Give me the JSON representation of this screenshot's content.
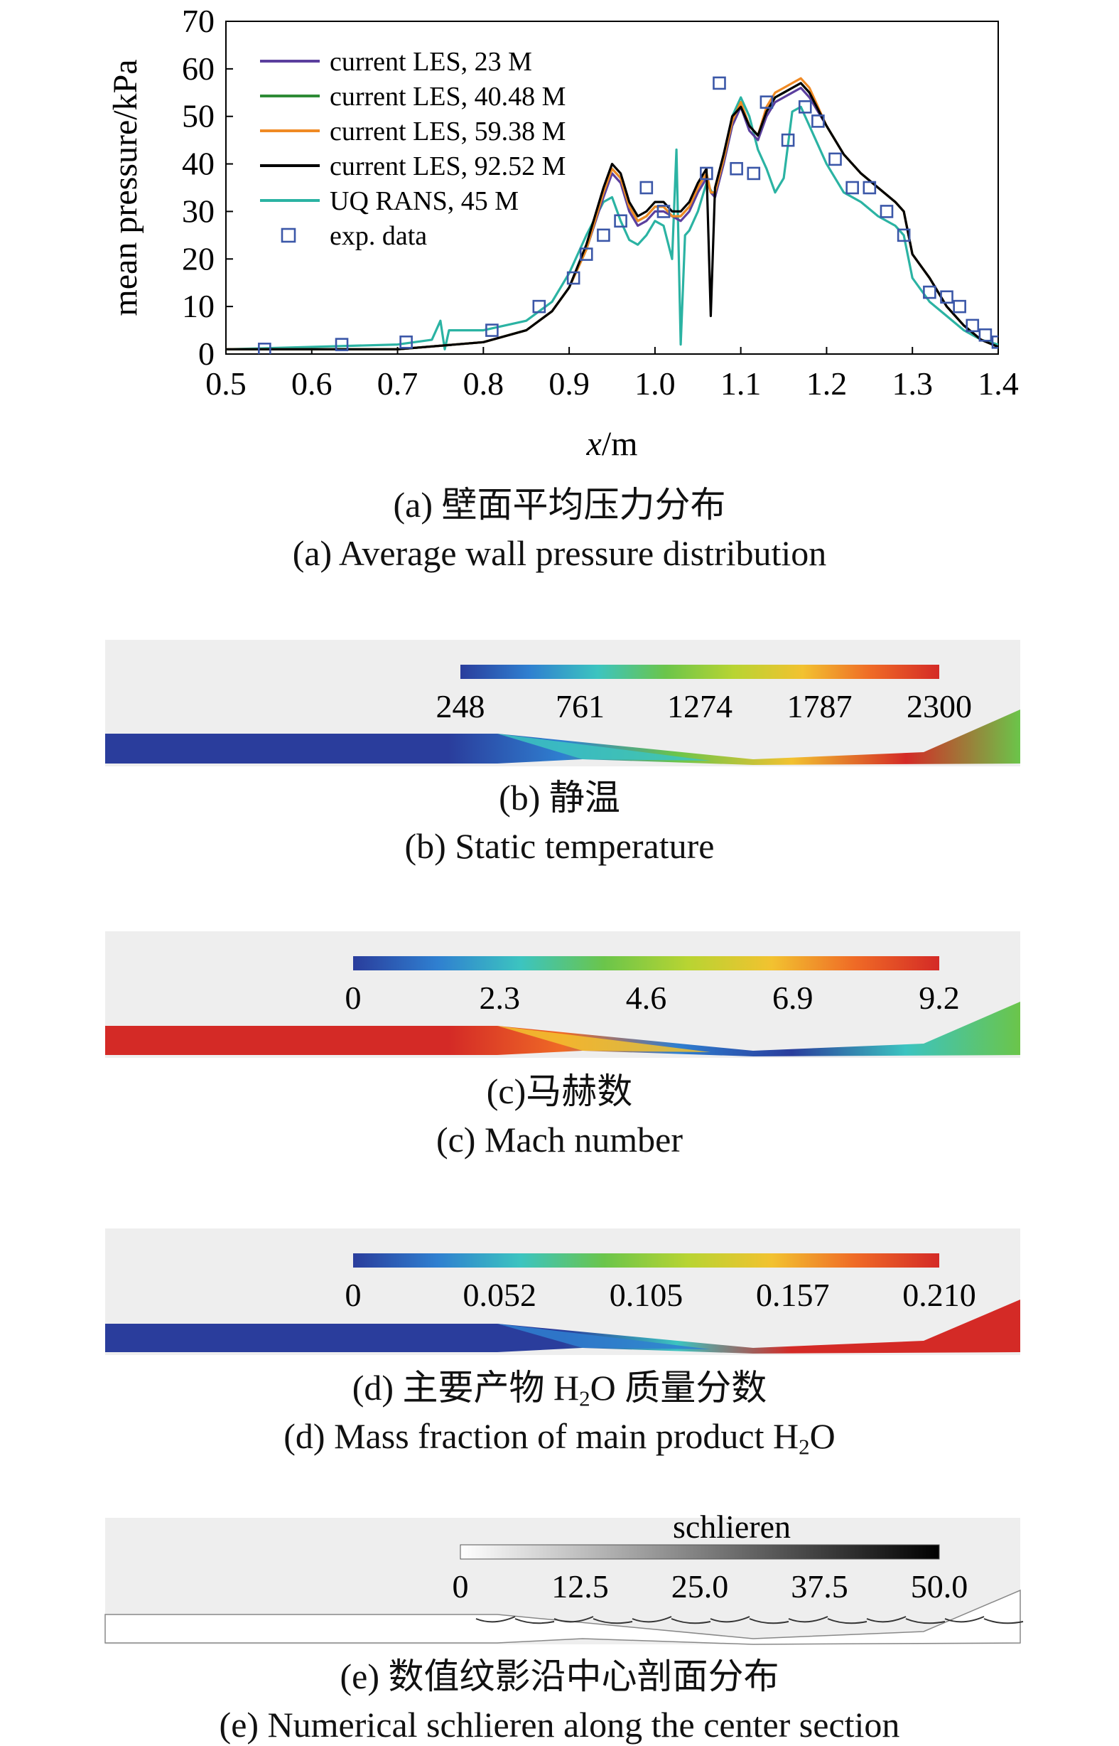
{
  "chart_data": [
    {
      "type": "line",
      "xlabel": "x/m",
      "ylabel": "mean pressure/kPa",
      "xlim": [
        0.5,
        1.4
      ],
      "ylim": [
        0,
        70
      ],
      "xticks": [
        "0.5",
        "0.6",
        "0.7",
        "0.8",
        "0.9",
        "1.0",
        "1.1",
        "1.2",
        "1.3",
        "1.4"
      ],
      "yticks": [
        "0",
        "10",
        "20",
        "30",
        "40",
        "50",
        "60",
        "70"
      ],
      "grid": false,
      "legend": "top-left",
      "series": [
        {
          "name": "current LES, 23 M",
          "color": "#5b3f9e",
          "x": [
            0.5,
            0.7,
            0.8,
            0.85,
            0.88,
            0.9,
            0.92,
            0.94,
            0.95,
            0.96,
            0.97,
            0.98,
            0.99,
            1.0,
            1.01,
            1.02,
            1.03,
            1.04,
            1.05,
            1.06,
            1.065,
            1.07,
            1.08,
            1.09,
            1.1,
            1.11,
            1.12,
            1.13,
            1.14,
            1.15,
            1.16,
            1.17,
            1.18,
            1.2,
            1.22,
            1.24,
            1.26,
            1.28,
            1.29,
            1.3,
            1.32,
            1.34,
            1.36,
            1.38,
            1.4
          ],
          "y": [
            1,
            1,
            2.5,
            5,
            9,
            14,
            22,
            33,
            38,
            36,
            30,
            27,
            28,
            30,
            30,
            29,
            28,
            30,
            34,
            37,
            34,
            33,
            40,
            48,
            52,
            47,
            45,
            50,
            53,
            54,
            55,
            56,
            54,
            48,
            42,
            38,
            35,
            32,
            30,
            21,
            16,
            10,
            6,
            3,
            1.5
          ]
        },
        {
          "name": "current LES, 40.48 M",
          "color": "#2e8b36",
          "x": [
            0.5,
            0.7,
            0.8,
            0.85,
            0.88,
            0.9,
            0.92,
            0.94,
            0.95,
            0.96,
            0.97,
            0.98,
            0.99,
            1.0,
            1.01,
            1.02,
            1.03,
            1.04,
            1.05,
            1.06,
            1.065,
            1.07,
            1.08,
            1.09,
            1.1,
            1.11,
            1.12,
            1.13,
            1.14,
            1.15,
            1.16,
            1.17,
            1.18,
            1.2,
            1.22,
            1.24,
            1.26,
            1.28,
            1.29,
            1.3,
            1.32,
            1.34,
            1.36,
            1.38,
            1.4
          ],
          "y": [
            1,
            1,
            2.5,
            5,
            9,
            14,
            22,
            34,
            39,
            37,
            31,
            28,
            29,
            31,
            31,
            29,
            29,
            31,
            35,
            38,
            34,
            34,
            41,
            49,
            53,
            48,
            46,
            51,
            54,
            55,
            56,
            57,
            55,
            48,
            42,
            38,
            35,
            32,
            30,
            21,
            16,
            10,
            6,
            3,
            1.5
          ]
        },
        {
          "name": "current LES, 59.38 M",
          "color": "#f08a24",
          "x": [
            0.5,
            0.7,
            0.8,
            0.85,
            0.88,
            0.9,
            0.92,
            0.94,
            0.95,
            0.96,
            0.97,
            0.98,
            0.99,
            1.0,
            1.01,
            1.02,
            1.03,
            1.04,
            1.05,
            1.06,
            1.065,
            1.07,
            1.08,
            1.09,
            1.1,
            1.11,
            1.12,
            1.13,
            1.14,
            1.15,
            1.16,
            1.17,
            1.18,
            1.2,
            1.22,
            1.24,
            1.26,
            1.28,
            1.29,
            1.3,
            1.32,
            1.34,
            1.36,
            1.38,
            1.4
          ],
          "y": [
            1,
            1,
            2.5,
            5,
            9,
            14,
            22,
            34,
            39,
            37,
            31,
            28,
            29,
            31,
            31,
            29,
            29,
            31,
            35,
            38,
            34,
            34,
            41,
            49,
            53,
            48,
            46,
            52,
            55,
            56,
            57,
            58,
            56,
            48,
            42,
            38,
            35,
            32,
            30,
            21,
            16,
            10,
            6,
            3,
            1.5
          ]
        },
        {
          "name": "current LES, 92.52 M",
          "color": "#000000",
          "x": [
            0.5,
            0.7,
            0.8,
            0.85,
            0.88,
            0.9,
            0.92,
            0.94,
            0.95,
            0.96,
            0.97,
            0.98,
            0.99,
            1.0,
            1.01,
            1.02,
            1.03,
            1.04,
            1.05,
            1.06,
            1.065,
            1.07,
            1.08,
            1.09,
            1.1,
            1.11,
            1.12,
            1.13,
            1.14,
            1.15,
            1.16,
            1.17,
            1.18,
            1.2,
            1.22,
            1.24,
            1.26,
            1.28,
            1.29,
            1.3,
            1.32,
            1.34,
            1.36,
            1.38,
            1.4
          ],
          "y": [
            1,
            1,
            2.5,
            5,
            9,
            14,
            23,
            35,
            40,
            38,
            32,
            29,
            30,
            32,
            32,
            30,
            30,
            32,
            36,
            39,
            8,
            35,
            42,
            50,
            52,
            48,
            46,
            51,
            54,
            55,
            56,
            57,
            55,
            48,
            42,
            38,
            35,
            32,
            30,
            21,
            16,
            10,
            6,
            3,
            1.5
          ]
        },
        {
          "name": "UQ RANS, 45 M",
          "color": "#2bb3a3",
          "x": [
            0.5,
            0.6,
            0.7,
            0.74,
            0.75,
            0.755,
            0.76,
            0.8,
            0.85,
            0.88,
            0.9,
            0.92,
            0.94,
            0.95,
            0.96,
            0.97,
            0.98,
            0.99,
            1.0,
            1.01,
            1.02,
            1.025,
            1.03,
            1.035,
            1.04,
            1.05,
            1.06,
            1.07,
            1.08,
            1.09,
            1.1,
            1.11,
            1.12,
            1.13,
            1.14,
            1.15,
            1.16,
            1.17,
            1.18,
            1.2,
            1.22,
            1.24,
            1.26,
            1.28,
            1.29,
            1.3,
            1.32,
            1.34,
            1.36,
            1.38,
            1.4
          ],
          "y": [
            1,
            1.5,
            2,
            3,
            7,
            1,
            5,
            5,
            7,
            11,
            17,
            25,
            32,
            33,
            28,
            24,
            23,
            25,
            28,
            27,
            20,
            43,
            2,
            25,
            26,
            30,
            36,
            33,
            41,
            50,
            54,
            50,
            43,
            39,
            34,
            37,
            51,
            52,
            48,
            40,
            34,
            32,
            29,
            27,
            25,
            16,
            11,
            8,
            5,
            3,
            2
          ]
        },
        {
          "name": "exp. data",
          "color": "#3b57a8",
          "style": "markers",
          "x": [
            0.545,
            0.635,
            0.71,
            0.81,
            0.865,
            0.905,
            0.92,
            0.94,
            0.96,
            0.99,
            1.01,
            1.06,
            1.075,
            1.095,
            1.115,
            1.13,
            1.155,
            1.175,
            1.19,
            1.21,
            1.23,
            1.25,
            1.27,
            1.29,
            1.32,
            1.34,
            1.355,
            1.37,
            1.385,
            1.4
          ],
          "y": [
            1,
            2,
            2.5,
            5,
            10,
            16,
            21,
            25,
            28,
            35,
            30,
            38,
            57,
            39,
            38,
            53,
            45,
            52,
            49,
            41,
            35,
            35,
            30,
            25,
            13,
            12,
            10,
            6,
            4,
            2.5
          ]
        }
      ]
    },
    {
      "type": "heatmap",
      "colorbar_ticks": [
        "248",
        "761",
        "1274",
        "1787",
        "2300"
      ],
      "colormap": "jet"
    },
    {
      "type": "heatmap",
      "colorbar_ticks": [
        "0",
        "2.3",
        "4.6",
        "6.9",
        "9.2"
      ],
      "colormap": "jet"
    },
    {
      "type": "heatmap",
      "colorbar_ticks": [
        "0",
        "0.052",
        "0.105",
        "0.157",
        "0.210"
      ],
      "colormap": "jet"
    },
    {
      "type": "heatmap",
      "title": "schlieren",
      "colorbar_ticks": [
        "0",
        "12.5",
        "25.0",
        "37.5",
        "50.0"
      ],
      "colormap": "greys"
    }
  ],
  "captions": {
    "a_cn": "(a) 壁面平均压力分布",
    "a_en": "(a) Average wall pressure distribution",
    "b_cn": "(b) 静温",
    "b_en": "(b) Static temperature",
    "c_cn": "(c)马赫数",
    "c_en": "(c) Mach number",
    "d_cn_pre": "(d) 主要产物 H",
    "d_cn_sub": "2",
    "d_cn_post": "O 质量分数",
    "d_en_pre": "(d) Mass fraction of main product H",
    "d_en_sub": "2",
    "d_en_post": "O",
    "e_cn": "(e) 数值纹影沿中心剖面分布",
    "e_en": "(e) Numerical schlieren along the center section"
  },
  "colors": {
    "jet": [
      "#2a3d9c",
      "#2f7fd0",
      "#3cc4c0",
      "#6bc54a",
      "#b8d432",
      "#f2c230",
      "#ef6a26",
      "#d42a26"
    ],
    "greys": [
      "#ffffff",
      "#000000"
    ],
    "background_strip": "#eeeeee"
  }
}
